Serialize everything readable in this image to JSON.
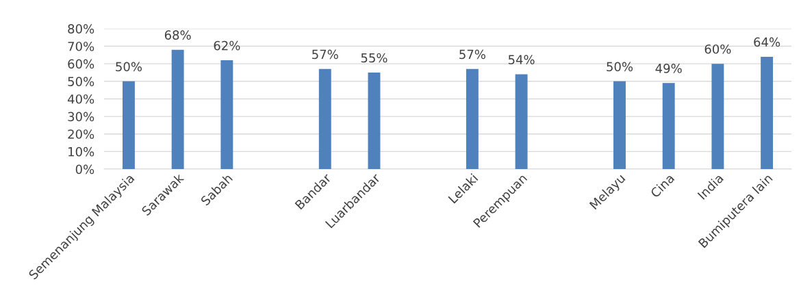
{
  "chart_data": {
    "type": "bar",
    "categories": [
      "Semenanjung Malaysia",
      "Sarawak",
      "Sabah",
      null,
      "Bandar",
      "Luarbandar",
      null,
      "Lelaki",
      "Perempuan",
      null,
      "Melayu",
      "Cina",
      "India",
      "Bumiputera lain"
    ],
    "values": [
      50,
      68,
      62,
      null,
      57,
      55,
      null,
      57,
      54,
      null,
      50,
      49,
      60,
      64
    ],
    "value_labels": [
      "50%",
      "68%",
      "62%",
      null,
      "57%",
      "55%",
      null,
      "57%",
      "54%",
      null,
      "50%",
      "49%",
      "60%",
      "64%"
    ],
    "color": "#4f81bd",
    "ylim": [
      0,
      80
    ],
    "yticks": [
      {
        "value": 0,
        "label": "0%"
      },
      {
        "value": 10,
        "label": "10%"
      },
      {
        "value": 20,
        "label": "20%"
      },
      {
        "value": 30,
        "label": "30%"
      },
      {
        "value": 40,
        "label": "40%"
      },
      {
        "value": 50,
        "label": "50%"
      },
      {
        "value": 60,
        "label": "60%"
      },
      {
        "value": 70,
        "label": "70%"
      },
      {
        "value": 80,
        "label": "80%"
      }
    ],
    "grid": "y"
  }
}
